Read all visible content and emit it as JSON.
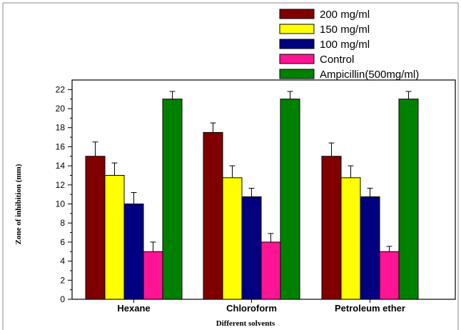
{
  "chart_data": {
    "type": "bar",
    "title": "",
    "xlabel": "Different solvents",
    "ylabel": "Zone of inhibition (mm)",
    "ylim": [
      0,
      23
    ],
    "yticks": [
      0,
      2,
      4,
      6,
      8,
      10,
      12,
      14,
      16,
      18,
      20,
      22
    ],
    "categories": [
      "Hexane",
      "Chloroform",
      "Petroleum ether"
    ],
    "legend_position": "top-right",
    "grid": false,
    "series": [
      {
        "name": "200 mg/ml",
        "color": "#800000",
        "values": [
          15,
          17.5,
          15
        ],
        "errors": [
          1.5,
          1.0,
          1.4
        ]
      },
      {
        "name": "150 mg/ml",
        "color": "#FFFF00",
        "values": [
          13,
          12.75,
          12.75
        ],
        "errors": [
          1.3,
          1.25,
          1.25
        ]
      },
      {
        "name": "100 mg/ml",
        "color": "#000080",
        "values": [
          10,
          10.75,
          10.75
        ],
        "errors": [
          1.2,
          0.9,
          0.9
        ]
      },
      {
        "name": "Control",
        "color": "#FF1493",
        "values": [
          5,
          6,
          5
        ],
        "errors": [
          1.0,
          0.9,
          0.55
        ]
      },
      {
        "name": "Ampicillin(500mg/ml)",
        "color": "#008000",
        "values": [
          21,
          21,
          21
        ],
        "errors": [
          0.8,
          0.8,
          0.8
        ]
      }
    ]
  }
}
